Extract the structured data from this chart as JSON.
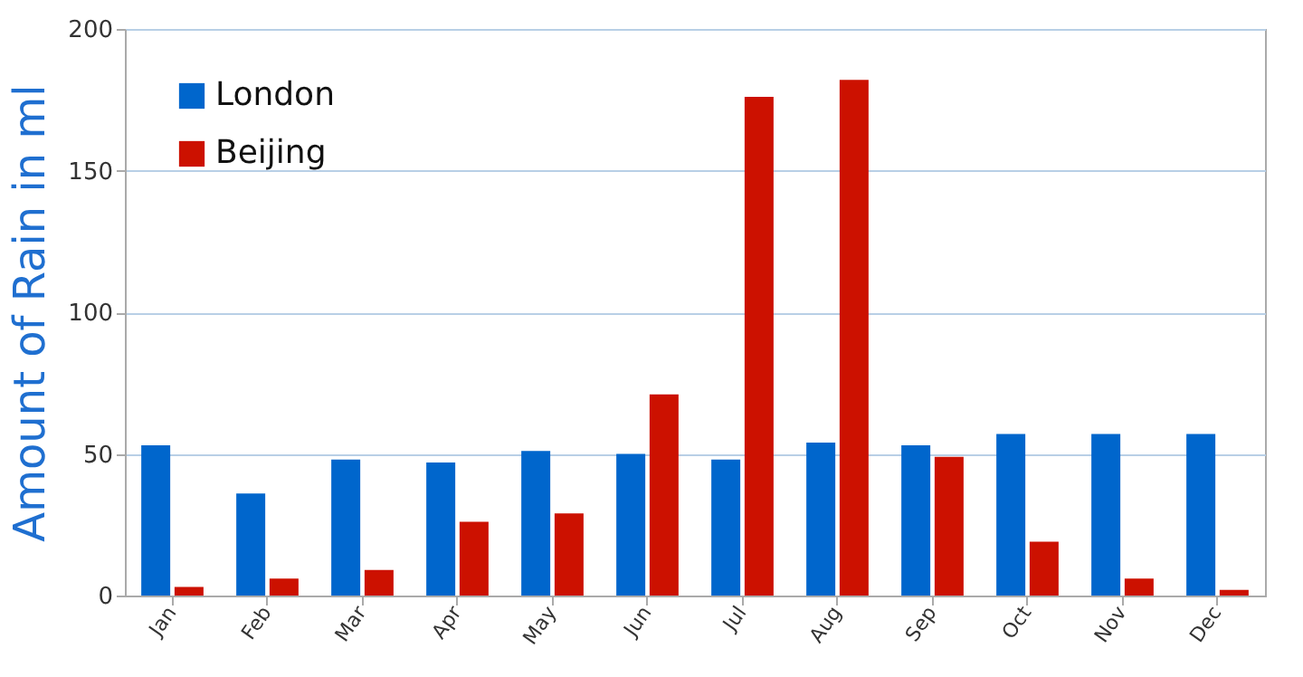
{
  "chart_data": {
    "type": "bar",
    "ylabel": "Amount of Rain in ml",
    "categories": [
      "Jan",
      "Feb",
      "Mar",
      "Apr",
      "May",
      "Jun",
      "Jul",
      "Aug",
      "Sep",
      "Oct",
      "Nov",
      "Dec"
    ],
    "series": [
      {
        "name": "London",
        "color": "#0066cc",
        "values": [
          53,
          36,
          48,
          47,
          51,
          50,
          48,
          54,
          53,
          57,
          57,
          57
        ]
      },
      {
        "name": "Beijing",
        "color": "#cc1100",
        "values": [
          3,
          6,
          9,
          26,
          29,
          71,
          176,
          182,
          49,
          19,
          6,
          2
        ]
      }
    ],
    "ylim": [
      0,
      200
    ],
    "yticks": [
      0,
      50,
      100,
      150,
      200
    ],
    "grid": "y",
    "legend": "top left"
  }
}
